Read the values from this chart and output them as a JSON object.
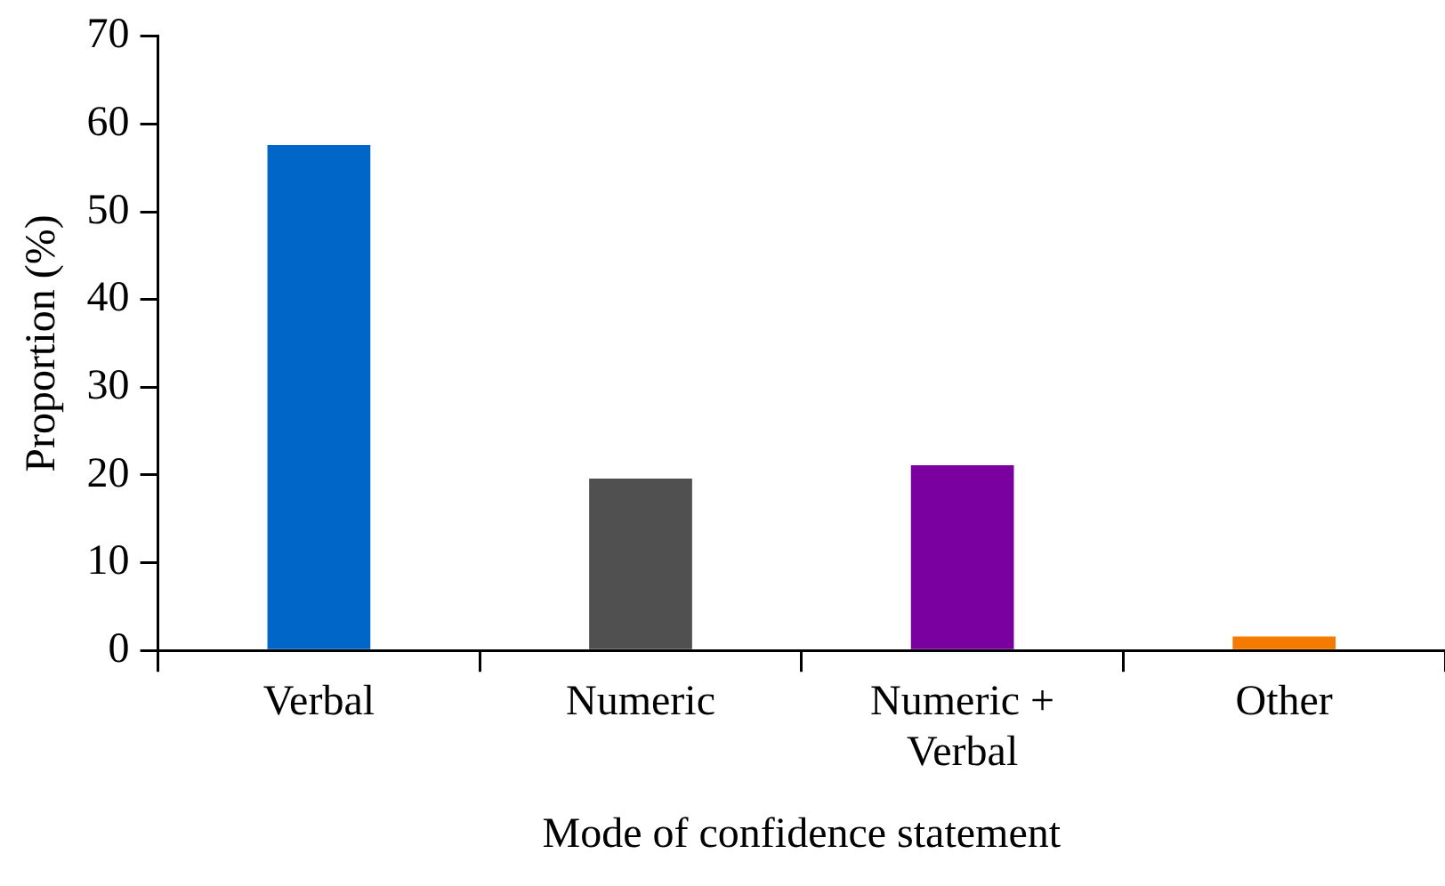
{
  "chart_data": {
    "type": "bar",
    "xlabel": "Mode of confidence statement",
    "ylabel": "Proportion (%)",
    "categories": [
      "Verbal",
      "Numeric",
      "Numeric + Verbal",
      "Other"
    ],
    "values": [
      57.6,
      19.6,
      21.1,
      1.6
    ],
    "colors": [
      "#0066c8",
      "#505050",
      "#7a00a0",
      "#f57a00"
    ],
    "ylim": [
      0,
      70
    ],
    "yticks": [
      0,
      10,
      20,
      30,
      40,
      50,
      60,
      70
    ],
    "grid": false,
    "legend": false
  }
}
